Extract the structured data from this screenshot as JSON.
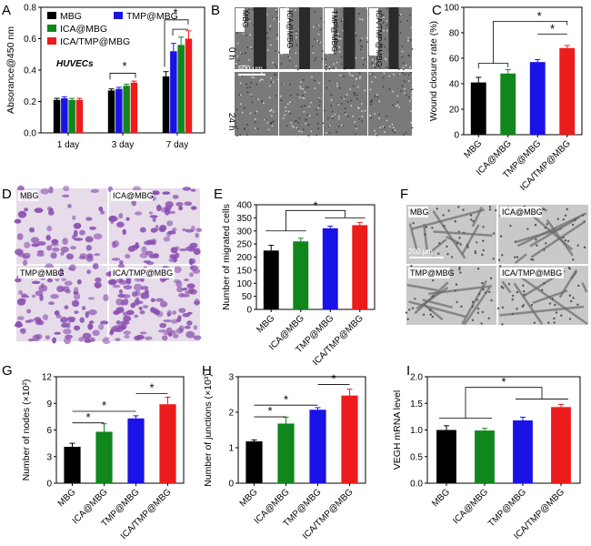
{
  "colors": {
    "MBG": "#000000",
    "TMP@MBG": "#1a12e6",
    "ICA@MBG": "#10861c",
    "ICA/TMP@MBG": "#ec1c1c"
  },
  "panel_letters": [
    "A",
    "B",
    "C",
    "D",
    "E",
    "F",
    "G",
    "H",
    "I"
  ],
  "chart_data": [
    {
      "panel": "A",
      "type": "bar",
      "categories": [
        "1 day",
        "3 day",
        "7 day"
      ],
      "series": [
        {
          "name": "MBG",
          "values": [
            0.21,
            0.27,
            0.36
          ],
          "errors": [
            0.01,
            0.01,
            0.03
          ]
        },
        {
          "name": "TMP@MBG",
          "values": [
            0.22,
            0.28,
            0.52
          ],
          "errors": [
            0.01,
            0.01,
            0.05
          ]
        },
        {
          "name": "ICA@MBG",
          "values": [
            0.21,
            0.3,
            0.56
          ],
          "errors": [
            0.01,
            0.01,
            0.05
          ]
        },
        {
          "name": "ICA/TMP@MBG",
          "values": [
            0.21,
            0.32,
            0.6
          ],
          "errors": [
            0.01,
            0.01,
            0.05
          ]
        }
      ],
      "ylabel": "Absorance@450 nm",
      "ylim": [
        0.0,
        0.8
      ],
      "yticks": [
        "0.0",
        "0.2",
        "0.4",
        "0.6",
        "0.8"
      ],
      "annotation": "HUVECs",
      "legend_placement": "top-left",
      "significance": [
        "*",
        "*"
      ]
    },
    {
      "panel": "C",
      "type": "bar",
      "categories": [
        "MBG",
        "ICA@MBG",
        "TMP@MBG",
        "ICA/TMP@MBG"
      ],
      "values": [
        41,
        48,
        57,
        68
      ],
      "errors": [
        4,
        3,
        2,
        2
      ],
      "ylabel": "Wound closure rate (%)",
      "ylim": [
        0,
        100
      ],
      "yticks": [
        "0",
        "20",
        "40",
        "60",
        "80",
        "100"
      ],
      "significance": [
        "*",
        "*"
      ]
    },
    {
      "panel": "E",
      "type": "bar",
      "categories": [
        "MBG",
        "ICA@MBG",
        "TMP@MBG",
        "ICA/TMP@MBG"
      ],
      "values": [
        225,
        260,
        310,
        322
      ],
      "errors": [
        20,
        12,
        8,
        10
      ],
      "ylabel": "Number of migrated cells",
      "ylim": [
        0,
        400
      ],
      "yticks": [
        "0",
        "50",
        "100",
        "150",
        "200",
        "250",
        "300",
        "350",
        "400"
      ],
      "significance": [
        "*"
      ]
    },
    {
      "panel": "G",
      "type": "bar",
      "categories": [
        "MBG",
        "ICA@MBG",
        "TMP@MBG",
        "ICA/TMP@MBG"
      ],
      "values": [
        4.1,
        5.8,
        7.3,
        8.9
      ],
      "errors": [
        0.4,
        0.9,
        0.3,
        0.8
      ],
      "ylabel": "Number of nodes (×10²)",
      "ylim": [
        0,
        12
      ],
      "yticks": [
        "0",
        "3",
        "6",
        "9",
        "12"
      ],
      "significance": [
        "*",
        "*",
        "*"
      ]
    },
    {
      "panel": "H",
      "type": "bar",
      "categories": [
        "MBG",
        "ICA@MBG",
        "TMP@MBG",
        "ICA/TMP@MBG"
      ],
      "values": [
        1.18,
        1.68,
        2.07,
        2.47
      ],
      "errors": [
        0.04,
        0.18,
        0.06,
        0.18
      ],
      "ylabel": "Number of junctions (×10³)",
      "ylim": [
        0,
        3
      ],
      "yticks": [
        "0",
        "1",
        "2",
        "3"
      ],
      "significance": [
        "*",
        "*",
        "*"
      ]
    },
    {
      "panel": "I",
      "type": "bar",
      "categories": [
        "MBG",
        "ICA@MBG",
        "TMP@MBG",
        "ICA/TMP@MBG"
      ],
      "values": [
        1.0,
        0.99,
        1.18,
        1.43
      ],
      "errors": [
        0.08,
        0.04,
        0.06,
        0.05
      ],
      "ylabel": "VEGH mRNA level",
      "ylim": [
        0.0,
        2.0
      ],
      "yticks": [
        "0.0",
        "0.5",
        "1.0",
        "1.5",
        "2.0"
      ],
      "significance": [
        "*"
      ]
    }
  ],
  "panel_B": {
    "labels": [
      "MBG",
      "ICA@MBG",
      "TMP@MBG",
      "ICA/TMP@MBG"
    ],
    "rows": [
      "0 h",
      "24 h"
    ],
    "scale_bar": "500 μm"
  },
  "panel_D": {
    "labels": [
      "MBG",
      "ICA@MBG",
      "TMP@MBG",
      "ICA/TMP@MBG"
    ],
    "stain_color": "#8a4fb0"
  },
  "panel_F": {
    "labels": [
      "MBG",
      "ICA@MBG",
      "TMP@MBG",
      "ICA/TMP@MBG"
    ],
    "scale_bar": "200 μm"
  }
}
